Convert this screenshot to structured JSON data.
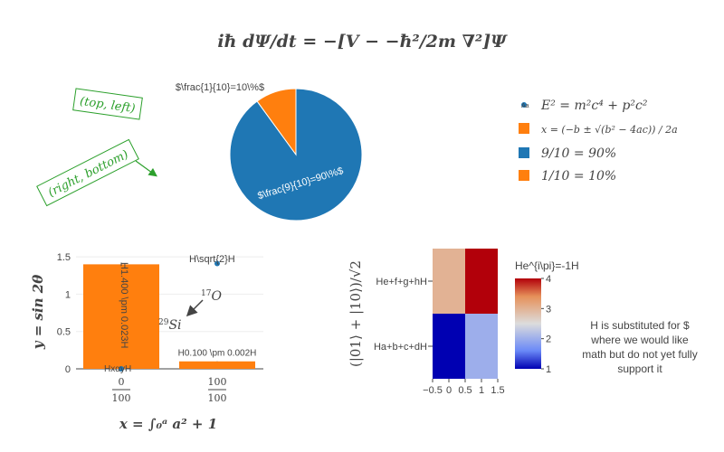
{
  "figure_title": "iħ dΨ/dt = −[V − −ħ²/2m ∇²]Ψ",
  "colors": {
    "blue": "#1f77b4",
    "orange": "#ff7f0e",
    "green": "#2ca02c",
    "text": "#444444",
    "grid": "#eeeeee"
  },
  "annotations": {
    "top_left": "(top, left)",
    "right_bottom": "(right, bottom)",
    "o17": "17O",
    "si29": "29Si",
    "h_sqrt2": "H\\sqrt{2}H",
    "substitution_note": "H is substituted for $ where we would like math but do not yet fully support it"
  },
  "legend": {
    "items": [
      {
        "label": "E² = m²c⁴ + p²c²",
        "symbol": "marker",
        "color": "#1f77b4"
      },
      {
        "label": "x = (−b ± √(b² − 4ac)) / 2a",
        "symbol": "square",
        "color": "#ff7f0e"
      },
      {
        "label": "9/10 = 90%",
        "symbol": "square",
        "color": "#1f77b4"
      },
      {
        "label": "1/10 = 10%",
        "symbol": "square",
        "color": "#ff7f0e"
      }
    ]
  },
  "chart_data": [
    {
      "type": "pie",
      "labels": [
        "9/10 = 90%",
        "1/10 = 10%"
      ],
      "values": [
        90,
        10
      ],
      "text_labels": [
        "$\\frac{9}{10}=90\\%$",
        "$\\frac{1}{10}=10\\%$"
      ],
      "colors": [
        "#1f77b4",
        "#ff7f0e"
      ]
    },
    {
      "type": "bar",
      "categories": [
        "0/100",
        "100/100"
      ],
      "x": [
        0,
        1
      ],
      "values": [
        1.4,
        0.1
      ],
      "error": [
        0.023,
        0.002
      ],
      "text_labels": [
        "H1.400 \\pm 0.023H",
        "H0.100 \\pm 0.002H"
      ],
      "color": "#ff7f0e",
      "ylim": [
        0,
        1.55
      ],
      "yticks": [
        "0",
        "0.5",
        "1",
        "1.5"
      ],
      "ylabel": "y = sin 2θ",
      "xlabel": "x = ∫₀ᵃ a² + 1",
      "points": [
        {
          "x": 0,
          "y": 0,
          "label": "HxαyH",
          "color": "#1f77b4"
        },
        {
          "x": 1,
          "y": 1.41,
          "label": "H\\sqrt{2}H",
          "color": "#1f77b4"
        }
      ]
    },
    {
      "type": "heatmap",
      "x_ticks": [
        "−0.5",
        "0",
        "0.5",
        "1",
        "1.5"
      ],
      "xlim": [
        -0.5,
        1.5
      ],
      "y_categories": [
        "Ha+b+c+dH",
        "He+f+g+hH"
      ],
      "z": [
        [
          1,
          2
        ],
        [
          3,
          4
        ]
      ],
      "colorbar_title": "He^{i\\pi}=-1H",
      "colorbar_ticks": [
        "1",
        "2",
        "3",
        "4"
      ],
      "zlim": [
        1,
        4
      ],
      "ylabel": "(|01⟩ + |10⟩)/√2"
    }
  ]
}
